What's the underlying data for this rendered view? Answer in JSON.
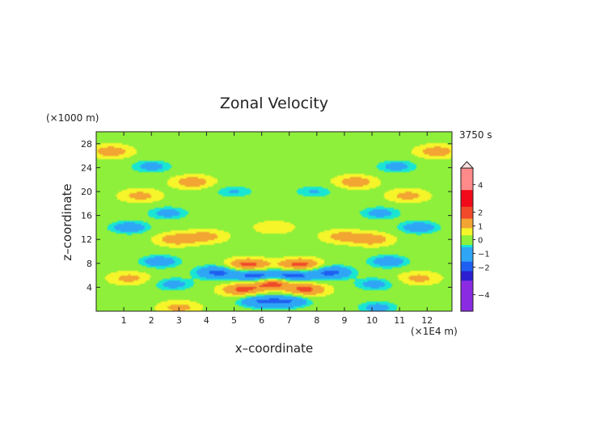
{
  "chart_data": {
    "type": "heatmap",
    "title": "Zonal Velocity",
    "xlabel": "x–coordinate",
    "ylabel": "z–coordinate",
    "x_unit": "(×1E4 m)",
    "y_unit": "(×1000 m)",
    "time_label": "3750 s",
    "xlim": [
      0,
      12.9
    ],
    "ylim": [
      0,
      30
    ],
    "xticks": [
      1,
      2,
      3,
      4,
      5,
      6,
      7,
      8,
      9,
      10,
      11,
      12
    ],
    "yticks": [
      4,
      8,
      12,
      16,
      20,
      24,
      28
    ],
    "colorbar": {
      "ticks": [
        4,
        2,
        1,
        0,
        -1,
        -2,
        -4
      ],
      "vmin": -5.2,
      "vmax": 5.2,
      "extend": "max"
    },
    "background_value": 0.05,
    "features": [
      {
        "x": 0.55,
        "z": 26.7,
        "value": 1.2
      },
      {
        "x": 12.35,
        "z": 26.7,
        "value": 1.2
      },
      {
        "x": 2.0,
        "z": 24.2,
        "value": -0.9
      },
      {
        "x": 10.9,
        "z": 24.2,
        "value": -0.9
      },
      {
        "x": 3.5,
        "z": 21.6,
        "value": 1.2
      },
      {
        "x": 9.4,
        "z": 21.6,
        "value": 1.2
      },
      {
        "x": 1.6,
        "z": 19.3,
        "value": 1.0
      },
      {
        "x": 11.3,
        "z": 19.3,
        "value": 1.0
      },
      {
        "x": 2.6,
        "z": 16.4,
        "value": -0.9
      },
      {
        "x": 10.3,
        "z": 16.4,
        "value": -0.9
      },
      {
        "x": 1.2,
        "z": 14.0,
        "value": -1.1
      },
      {
        "x": 11.7,
        "z": 14.0,
        "value": -1.1
      },
      {
        "x": 2.9,
        "z": 12.0,
        "value": 1.2
      },
      {
        "x": 10.0,
        "z": 12.0,
        "value": 1.2
      },
      {
        "x": 4.0,
        "z": 12.5,
        "value": 1.0
      },
      {
        "x": 8.9,
        "z": 12.5,
        "value": 1.0
      },
      {
        "x": 2.3,
        "z": 8.3,
        "value": -1.1
      },
      {
        "x": 10.6,
        "z": 8.3,
        "value": -1.1
      },
      {
        "x": 4.4,
        "z": 6.5,
        "value": -1.8
      },
      {
        "x": 8.5,
        "z": 6.5,
        "value": -1.8
      },
      {
        "x": 5.5,
        "z": 7.7,
        "value": 2.0
      },
      {
        "x": 7.4,
        "z": 7.7,
        "value": 2.0
      },
      {
        "x": 5.8,
        "z": 5.9,
        "value": -2.2
      },
      {
        "x": 7.1,
        "z": 5.9,
        "value": -2.2
      },
      {
        "x": 2.8,
        "z": 4.5,
        "value": -0.9
      },
      {
        "x": 10.1,
        "z": 4.5,
        "value": -0.9
      },
      {
        "x": 1.2,
        "z": 5.5,
        "value": 1.0
      },
      {
        "x": 11.7,
        "z": 5.5,
        "value": 1.0
      },
      {
        "x": 5.3,
        "z": 3.6,
        "value": 1.8
      },
      {
        "x": 7.6,
        "z": 3.6,
        "value": 1.8
      },
      {
        "x": 6.4,
        "z": 4.8,
        "value": 2.2
      },
      {
        "x": 5.9,
        "z": 1.7,
        "value": -1.5
      },
      {
        "x": 7.0,
        "z": 1.7,
        "value": -1.5
      },
      {
        "x": 3.0,
        "z": 0.6,
        "value": 1.0
      },
      {
        "x": 10.2,
        "z": 0.6,
        "value": -0.9
      },
      {
        "x": 5.0,
        "z": 20.0,
        "value": -0.7
      },
      {
        "x": 7.9,
        "z": 20.0,
        "value": -0.7
      },
      {
        "x": 6.45,
        "z": 14.0,
        "value": 0.7
      }
    ]
  }
}
